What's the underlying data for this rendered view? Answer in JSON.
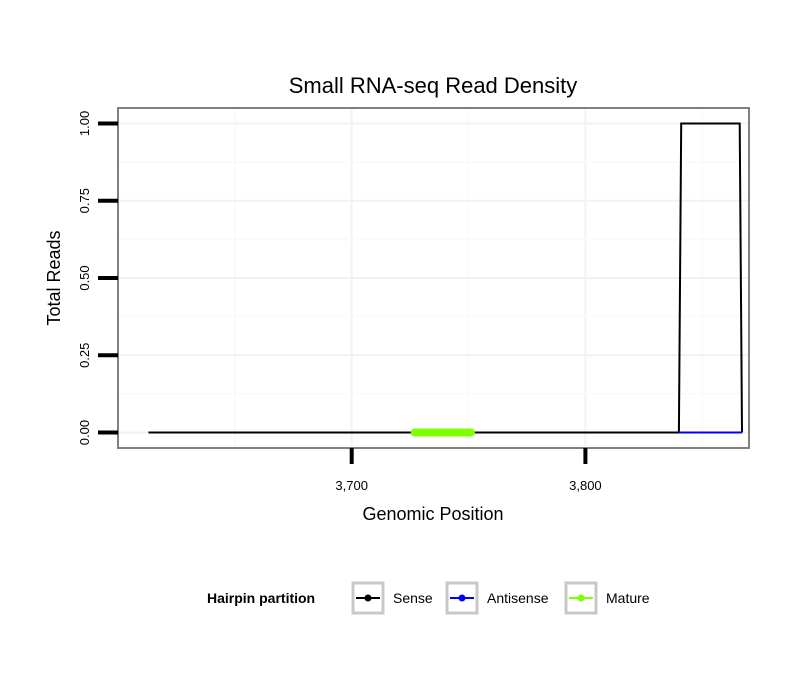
{
  "chart_data": {
    "type": "line",
    "title": "Small RNA-seq Read Density",
    "xlabel": "Genomic Position",
    "ylabel": "Total Reads",
    "xlim": [
      3600,
      3870
    ],
    "ylim": [
      -0.05,
      1.05
    ],
    "x_ticks": [
      3700,
      3800
    ],
    "x_tick_labels": [
      "3,700",
      "3,800"
    ],
    "y_ticks": [
      0,
      0.25,
      0.5,
      0.75,
      1.0
    ],
    "y_tick_labels": [
      "0.00",
      "0.25",
      "0.50",
      "0.75",
      "1.00"
    ],
    "grid": true,
    "legend": {
      "title": "Hairpin partition",
      "position": "bottom",
      "entries": [
        {
          "name": "Sense",
          "color": "#000000"
        },
        {
          "name": "Antisense",
          "color": "#0000ff"
        },
        {
          "name": "Mature",
          "color": "#7fff00"
        }
      ]
    },
    "series": [
      {
        "name": "Sense",
        "color": "#000000",
        "x": [
          3613,
          3840,
          3841,
          3866,
          3867
        ],
        "y": [
          0,
          0,
          1,
          1,
          0
        ]
      },
      {
        "name": "Antisense",
        "color": "#0000ff",
        "x": [
          3840,
          3867
        ],
        "y": [
          0,
          0
        ]
      },
      {
        "name": "Mature",
        "color": "#7fff00",
        "x": [
          3727,
          3751
        ],
        "y": [
          0,
          0
        ]
      }
    ]
  }
}
